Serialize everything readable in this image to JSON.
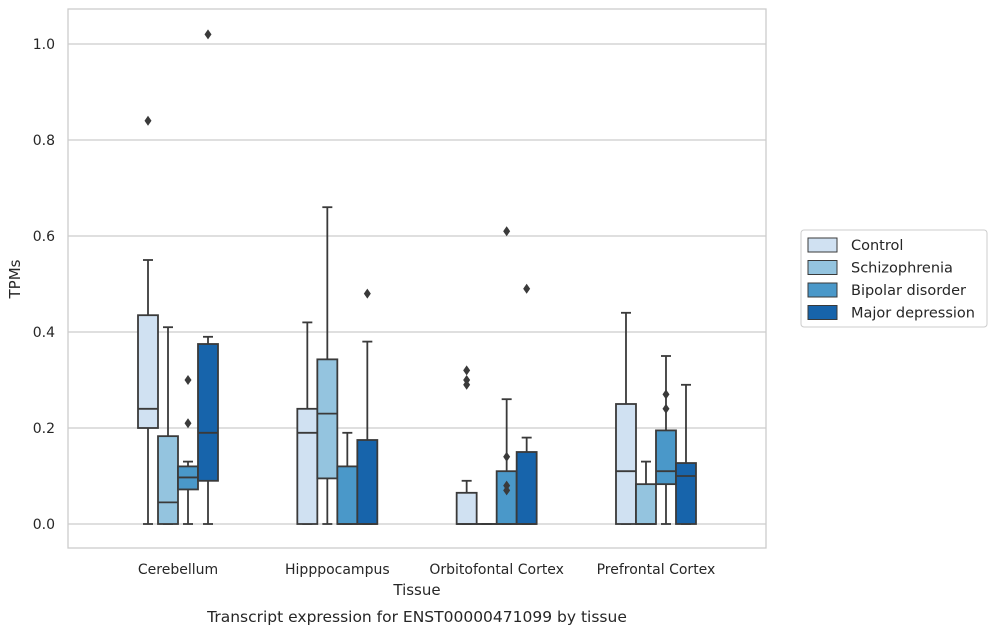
{
  "chart_data": {
    "type": "boxplot",
    "xlabel": "Tissue",
    "ylabel": "TPMs",
    "caption": "Transcript expression for ENST00000471099 by tissue",
    "categories": [
      "Cerebellum",
      "Hipppocampus",
      "Orbitofontal Cortex",
      "Prefrontal Cortex"
    ],
    "ylim": [
      -0.05,
      1.07
    ],
    "yticks": [
      0.0,
      0.2,
      0.4,
      0.6,
      0.8,
      1.0
    ],
    "ytick_labels": [
      "0.0",
      "0.2",
      "0.4",
      "0.6",
      "0.8",
      "1.0"
    ],
    "grid": "horizontal",
    "legend_position": "right",
    "series": [
      {
        "name": "Control",
        "color": "#d0e1f2",
        "boxes": [
          {
            "whislo": 0.0,
            "q1": 0.2,
            "med": 0.24,
            "q3": 0.435,
            "whishi": 0.55,
            "fliers": [
              0.84
            ]
          },
          {
            "whislo": 0.0,
            "q1": 0.0,
            "med": 0.19,
            "q3": 0.24,
            "whishi": 0.42,
            "fliers": []
          },
          {
            "whislo": 0.0,
            "q1": 0.0,
            "med": 0.0,
            "q3": 0.065,
            "whishi": 0.09,
            "fliers": [
              0.29,
              0.3,
              0.32
            ]
          },
          {
            "whislo": 0.0,
            "q1": 0.0,
            "med": 0.11,
            "q3": 0.25,
            "whishi": 0.44,
            "fliers": []
          }
        ]
      },
      {
        "name": "Schizophrenia",
        "color": "#94c4df",
        "boxes": [
          {
            "whislo": 0.0,
            "q1": 0.0,
            "med": 0.045,
            "q3": 0.183,
            "whishi": 0.41,
            "fliers": []
          },
          {
            "whislo": 0.0,
            "q1": 0.095,
            "med": 0.23,
            "q3": 0.343,
            "whishi": 0.66,
            "fliers": []
          },
          {
            "whislo": 0.0,
            "q1": 0.0,
            "med": 0.0,
            "q3": 0.0,
            "whishi": 0.0,
            "fliers": []
          },
          {
            "whislo": 0.0,
            "q1": 0.0,
            "med": 0.0,
            "q3": 0.083,
            "whishi": 0.13,
            "fliers": []
          }
        ]
      },
      {
        "name": "Bipolar disorder",
        "color": "#4a98c9",
        "boxes": [
          {
            "whislo": 0.0,
            "q1": 0.072,
            "med": 0.097,
            "q3": 0.12,
            "whishi": 0.13,
            "fliers": [
              0.21,
              0.3
            ]
          },
          {
            "whislo": 0.0,
            "q1": 0.0,
            "med": 0.0,
            "q3": 0.12,
            "whishi": 0.19,
            "fliers": []
          },
          {
            "whislo": 0.0,
            "q1": 0.0,
            "med": 0.0,
            "q3": 0.11,
            "whishi": 0.26,
            "fliers": [
              0.07,
              0.08,
              0.14,
              0.61
            ]
          },
          {
            "whislo": 0.0,
            "q1": 0.083,
            "med": 0.11,
            "q3": 0.195,
            "whishi": 0.35,
            "fliers": [
              0.24,
              0.27
            ]
          }
        ]
      },
      {
        "name": "Major depression",
        "color": "#1764ab",
        "boxes": [
          {
            "whislo": 0.0,
            "q1": 0.09,
            "med": 0.19,
            "q3": 0.375,
            "whishi": 0.39,
            "fliers": [
              1.02
            ]
          },
          {
            "whislo": 0.0,
            "q1": 0.0,
            "med": 0.0,
            "q3": 0.175,
            "whishi": 0.38,
            "fliers": [
              0.48
            ]
          },
          {
            "whislo": 0.0,
            "q1": 0.0,
            "med": 0.0,
            "q3": 0.15,
            "whishi": 0.18,
            "fliers": [
              0.49
            ]
          },
          {
            "whislo": 0.0,
            "q1": 0.0,
            "med": 0.1,
            "q3": 0.127,
            "whishi": 0.29,
            "fliers": []
          }
        ]
      }
    ]
  }
}
